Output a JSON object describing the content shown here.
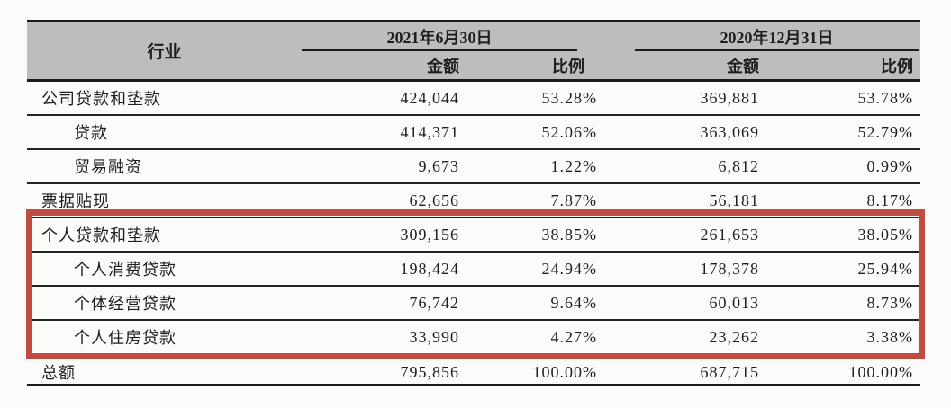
{
  "table": {
    "industry_header": "行业",
    "groups": [
      {
        "date": "2021年6月30日",
        "amount_label": "金额",
        "ratio_label": "比例"
      },
      {
        "date": "2020年12月31日",
        "amount_label": "金额",
        "ratio_label": "比例"
      }
    ],
    "rows": [
      {
        "label": "公司贷款和垫款",
        "indent": false,
        "amount_2021": "424,044",
        "ratio_2021": "53.28%",
        "amount_2020": "369,881",
        "ratio_2020": "53.78%",
        "highlighted": false
      },
      {
        "label": "贷款",
        "indent": true,
        "amount_2021": "414,371",
        "ratio_2021": "52.06%",
        "amount_2020": "363,069",
        "ratio_2020": "52.79%",
        "highlighted": false
      },
      {
        "label": "贸易融资",
        "indent": true,
        "amount_2021": "9,673",
        "ratio_2021": "1.22%",
        "amount_2020": "6,812",
        "ratio_2020": "0.99%",
        "highlighted": false
      },
      {
        "label": "票据贴现",
        "indent": false,
        "amount_2021": "62,656",
        "ratio_2021": "7.87%",
        "amount_2020": "56,181",
        "ratio_2020": "8.17%",
        "highlighted": false
      },
      {
        "label": "个人贷款和垫款",
        "indent": false,
        "amount_2021": "309,156",
        "ratio_2021": "38.85%",
        "amount_2020": "261,653",
        "ratio_2020": "38.05%",
        "highlighted": true
      },
      {
        "label": "个人消费贷款",
        "indent": true,
        "amount_2021": "198,424",
        "ratio_2021": "24.94%",
        "amount_2020": "178,378",
        "ratio_2020": "25.94%",
        "highlighted": true
      },
      {
        "label": "个体经营贷款",
        "indent": true,
        "amount_2021": "76,742",
        "ratio_2021": "9.64%",
        "amount_2020": "60,013",
        "ratio_2020": "8.73%",
        "highlighted": true
      },
      {
        "label": "个人住房贷款",
        "indent": true,
        "amount_2021": "33,990",
        "ratio_2021": "4.27%",
        "amount_2020": "23,262",
        "ratio_2020": "3.38%",
        "highlighted": true
      },
      {
        "label": "总额",
        "indent": false,
        "amount_2021": "795,856",
        "ratio_2021": "100.00%",
        "amount_2020": "687,715",
        "ratio_2020": "100.00%",
        "highlighted": false
      }
    ],
    "colors": {
      "header_background": "#bdbdbd",
      "border": "#1b1b1b",
      "highlight_border": "#bf4b41"
    }
  }
}
